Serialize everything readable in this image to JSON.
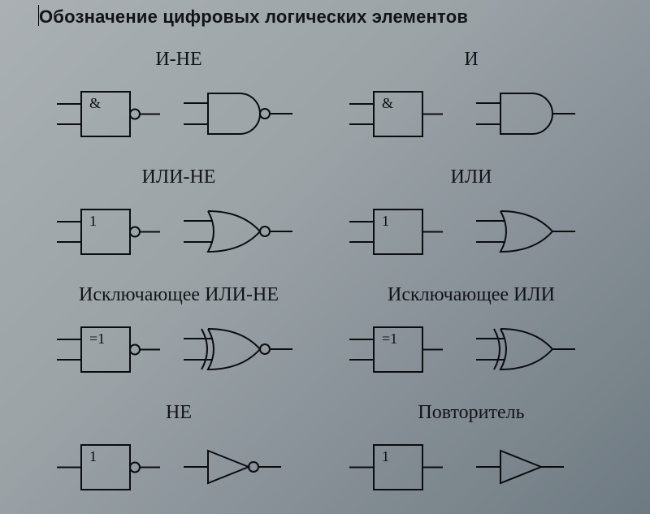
{
  "title": "Обозначение цифровых логических элементов",
  "diagram": {
    "type": "infographic",
    "stroke": "#0a0d10",
    "stroke_width": 2,
    "cell_svg_w": 320,
    "cell_svg_h": 90,
    "label_fontsize": 24,
    "title_fontsize": 22,
    "title_font": "Arial",
    "label_font": "Times New Roman",
    "iec_symbol_fontsize": 18,
    "background_gradient": [
      "#aab0b3",
      "#9ba3a7",
      "#6e7a82"
    ]
  },
  "gates": [
    {
      "id": "nand",
      "label": "И-НЕ",
      "iec_text": "&",
      "inputs": 2,
      "iec_inverted": true,
      "ansi_shape": "and",
      "ansi_inverted": true
    },
    {
      "id": "and",
      "label": "И",
      "iec_text": "&",
      "inputs": 2,
      "iec_inverted": false,
      "ansi_shape": "and",
      "ansi_inverted": false
    },
    {
      "id": "nor",
      "label": "ИЛИ-НЕ",
      "iec_text": "1",
      "inputs": 2,
      "iec_inverted": true,
      "ansi_shape": "or",
      "ansi_inverted": true
    },
    {
      "id": "or",
      "label": "ИЛИ",
      "iec_text": "1",
      "inputs": 2,
      "iec_inverted": false,
      "ansi_shape": "or",
      "ansi_inverted": false
    },
    {
      "id": "xnor",
      "label": "Исключающее ИЛИ-НЕ",
      "iec_text": "=1",
      "inputs": 2,
      "iec_inverted": true,
      "ansi_shape": "xor",
      "ansi_inverted": true
    },
    {
      "id": "xor",
      "label": "Исключающее ИЛИ",
      "iec_text": "=1",
      "inputs": 2,
      "iec_inverted": false,
      "ansi_shape": "xor",
      "ansi_inverted": false
    },
    {
      "id": "not",
      "label": "НЕ",
      "iec_text": "1",
      "inputs": 1,
      "iec_inverted": true,
      "ansi_shape": "buffer",
      "ansi_inverted": true
    },
    {
      "id": "buf",
      "label": "Повторитель",
      "iec_text": "1",
      "inputs": 1,
      "iec_inverted": false,
      "ansi_shape": "buffer",
      "ansi_inverted": false
    }
  ]
}
